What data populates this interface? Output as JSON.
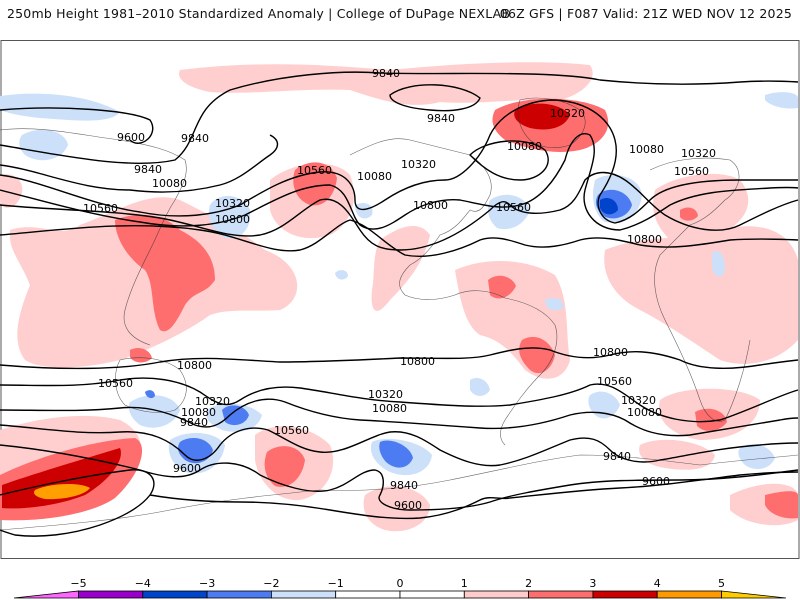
{
  "header": {
    "title_left": "250mb Height 1981–2010 Standardized Anomaly | College of DuPage NEXLAB",
    "title_right": "06Z GFS | F087 Valid: 21Z WED NOV 12 2025"
  },
  "map": {
    "variable": "250mb Height",
    "contour_labels": [
      {
        "id": "c1",
        "text": "9840"
      },
      {
        "id": "c2",
        "text": "9600"
      },
      {
        "id": "c3",
        "text": "9840"
      },
      {
        "id": "c4",
        "text": "9840"
      },
      {
        "id": "c5",
        "text": "10320"
      },
      {
        "id": "c6",
        "text": "9840"
      },
      {
        "id": "c7",
        "text": "10080"
      },
      {
        "id": "c8",
        "text": "10560"
      },
      {
        "id": "c9",
        "text": "10080"
      },
      {
        "id": "c10",
        "text": "10320"
      },
      {
        "id": "c11",
        "text": "10080"
      },
      {
        "id": "c12",
        "text": "10560"
      },
      {
        "id": "c13",
        "text": "10320"
      },
      {
        "id": "c14",
        "text": "10800"
      },
      {
        "id": "c15",
        "text": "10800"
      },
      {
        "id": "c16",
        "text": "10560"
      },
      {
        "id": "c17",
        "text": "10080"
      },
      {
        "id": "c18",
        "text": "10320"
      },
      {
        "id": "c19",
        "text": "10560"
      },
      {
        "id": "c20",
        "text": "10800"
      },
      {
        "id": "c21",
        "text": "10800"
      },
      {
        "id": "c22",
        "text": "10800"
      },
      {
        "id": "c23",
        "text": "10560"
      },
      {
        "id": "c24",
        "text": "10320"
      },
      {
        "id": "c25",
        "text": "10080"
      },
      {
        "id": "c26",
        "text": "9840"
      },
      {
        "id": "c27",
        "text": "10560"
      },
      {
        "id": "c28",
        "text": "10320"
      },
      {
        "id": "c29",
        "text": "10080"
      },
      {
        "id": "c30",
        "text": "9600"
      },
      {
        "id": "c31",
        "text": "9840"
      },
      {
        "id": "c32",
        "text": "9600"
      },
      {
        "id": "c33",
        "text": "10800"
      },
      {
        "id": "c34",
        "text": "10560"
      },
      {
        "id": "c35",
        "text": "10320"
      },
      {
        "id": "c36",
        "text": "10080"
      },
      {
        "id": "c37",
        "text": "9840"
      },
      {
        "id": "c38",
        "text": "9600"
      }
    ]
  },
  "colorbar": {
    "ticks": [
      "−5",
      "−4",
      "−3",
      "−2",
      "−1",
      "0",
      "1",
      "2",
      "3",
      "4",
      "5"
    ],
    "colors": {
      "lt_m5": "#ff66ff",
      "m5_m4": "#9900cc",
      "m4_m3": "#0044cc",
      "m3_m2": "#4d7cf2",
      "m2_m1": "#cce0fa",
      "m1_0": "#ffffff",
      "p0_1": "#ffffff",
      "p1_2": "#ffcccc",
      "p2_3": "#ff6e6e",
      "p3_4": "#cc0000",
      "p4_5": "#ff9900",
      "gt_5": "#ffcc00"
    }
  },
  "anomaly_colors": {
    "light_red": "#ffcfcf",
    "red": "#ff6e6e",
    "dark_red": "#cc0000",
    "orange": "#ffa000",
    "light_blue": "#cce0fa",
    "blue": "#4d7cf2",
    "dark_blue": "#0044cc"
  }
}
